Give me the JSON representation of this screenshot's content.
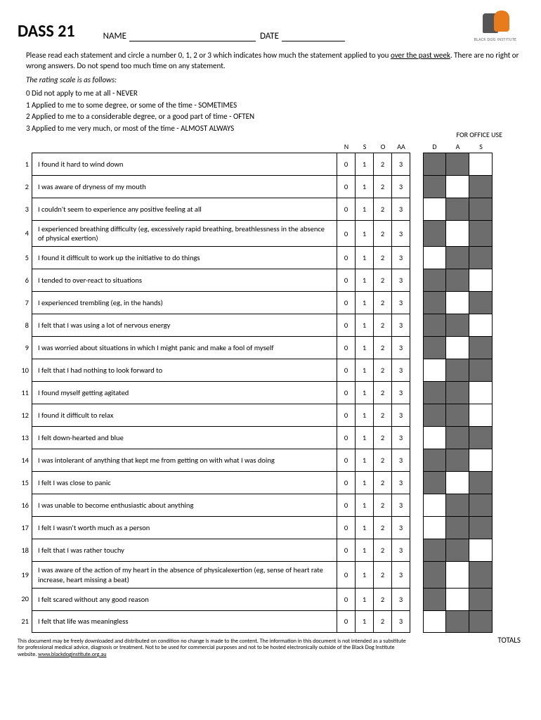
{
  "header": {
    "title": "DASS 21",
    "name_label": "NAME",
    "date_label": "DATE",
    "logo_text": "BLACK DOG INSTITUTE"
  },
  "instructions": {
    "line1_pre": "Please read each statement and circle a number 0, 1, 2 or 3 which indicates how much the statement applied to you ",
    "line1_under": "over the past week",
    "line1_post": ".  There are no right or wrong answers.  Do not spend too much time on any statement.",
    "line2": "The rating scale is as follows:"
  },
  "scale": [
    "0  Did not apply to me at all - NEVER",
    "1  Applied to me to some degree, or some of the time - SOMETIMES",
    "2  Applied to me to a considerable degree, or a good part of time - OFTEN",
    "3  Applied to me very much, or most of the time - ALMOST ALWAYS"
  ],
  "office_use_label": "FOR OFFICE USE",
  "col_headers": {
    "ratings": [
      "N",
      "S",
      "O",
      "AA"
    ],
    "office": [
      "D",
      "A",
      "S"
    ]
  },
  "rating_values": [
    "0",
    "1",
    "2",
    "3"
  ],
  "questions": [
    {
      "n": "1",
      "text": "I found it hard to wind down",
      "shade": [
        true,
        true,
        false
      ]
    },
    {
      "n": "2",
      "text": "I was aware of dryness of my mouth",
      "shade": [
        true,
        false,
        true
      ]
    },
    {
      "n": "3",
      "text": "I couldn't seem to experience any positive feeling at all",
      "shade": [
        false,
        true,
        true
      ]
    },
    {
      "n": "4",
      "text": "I experienced breathing difficulty (eg, excessively rapid breathing, breathlessness in the absence of physical exertion)",
      "shade": [
        true,
        false,
        true
      ]
    },
    {
      "n": "5",
      "text": "I found it difficult to work up the initiative to do things",
      "shade": [
        false,
        true,
        true
      ]
    },
    {
      "n": "6",
      "text": "I tended to over-react to situations",
      "shade": [
        true,
        true,
        false
      ]
    },
    {
      "n": "7",
      "text": "I experienced trembling (eg, in the hands)",
      "shade": [
        true,
        false,
        true
      ]
    },
    {
      "n": "8",
      "text": "I felt that I was using a lot of nervous energy",
      "shade": [
        true,
        true,
        false
      ]
    },
    {
      "n": "9",
      "text": "I was worried about situations in which I might panic and make a fool of myself",
      "shade": [
        true,
        false,
        true
      ]
    },
    {
      "n": "10",
      "text": "I felt that I had nothing to look forward to",
      "shade": [
        false,
        true,
        true
      ]
    },
    {
      "n": "11",
      "text": "I found myself getting agitated",
      "shade": [
        true,
        true,
        false
      ]
    },
    {
      "n": "12",
      "text": "I found it difficult to relax",
      "shade": [
        true,
        true,
        false
      ]
    },
    {
      "n": "13",
      "text": "I felt down-hearted and blue",
      "shade": [
        false,
        true,
        true
      ]
    },
    {
      "n": "14",
      "text": "I was intolerant of anything that kept me from getting on with what I was doing",
      "shade": [
        true,
        true,
        false
      ]
    },
    {
      "n": "15",
      "text": "I felt I was close to panic",
      "shade": [
        true,
        false,
        true
      ]
    },
    {
      "n": "16",
      "text": "I was unable to become enthusiastic about anything",
      "shade": [
        false,
        true,
        true
      ]
    },
    {
      "n": "17",
      "text": "I felt I wasn't worth much as a person",
      "shade": [
        false,
        true,
        true
      ]
    },
    {
      "n": "18",
      "text": "I felt that I was rather touchy",
      "shade": [
        true,
        true,
        false
      ]
    },
    {
      "n": "19",
      "text": "I was aware of the action of my heart in the absence of physicalexertion (eg, sense of heart rate increase, heart missing a beat)",
      "shade": [
        true,
        false,
        true
      ]
    },
    {
      "n": "20",
      "text": "I felt scared without any good reason",
      "shade": [
        true,
        false,
        true
      ]
    },
    {
      "n": "21",
      "text": "I felt that life was meaningless",
      "shade": [
        false,
        true,
        true
      ]
    }
  ],
  "totals_label": "TOTALS",
  "disclaimer": {
    "text": "This document may be freely downloaded and distributed on condition no change is made to the content. The information in this document is not intended as a substitute for professional medical advice, diagnosis or treatment. Not to be used for commercial purposes and not to be hosted electronically outside of the Black Dog Institute website. ",
    "link": "www.blackdoginstitute.org.au"
  },
  "colors": {
    "shade": "#6d6d6d",
    "logo_orange": "#e87b1c",
    "logo_grey": "#555555"
  }
}
